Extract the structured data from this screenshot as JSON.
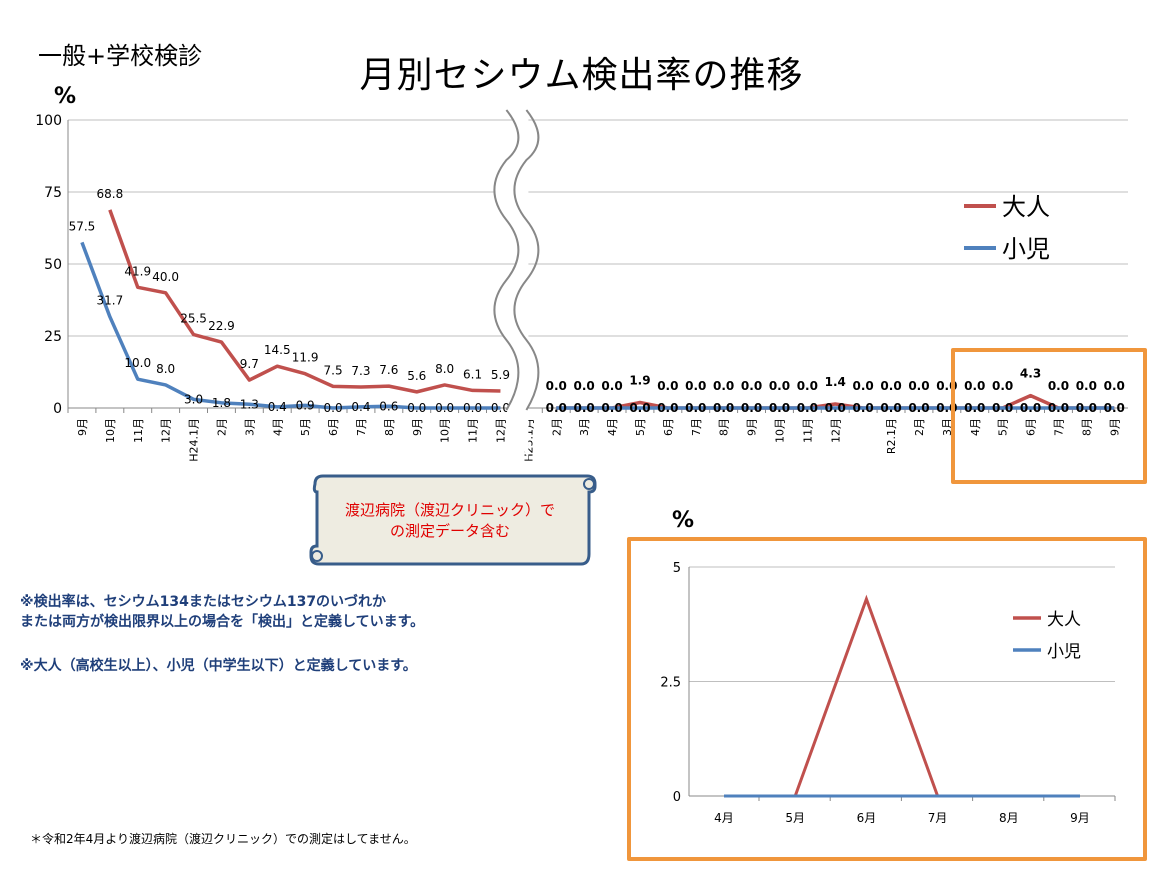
{
  "header": {
    "tag": "一般+学校検診",
    "title": "月別セシウム検出率の推移",
    "unit": "%"
  },
  "chart_data": [
    {
      "type": "line",
      "ylabel": "%",
      "ylim": [
        0,
        100
      ],
      "yticks": [
        0,
        25,
        50,
        75,
        100
      ],
      "axis_break": "between 12月 and H25.1月",
      "categories": [
        "9月",
        "10月",
        "11月",
        "12月",
        "H24.1月",
        "2月",
        "3月",
        "4月",
        "5月",
        "6月",
        "7月",
        "8月",
        "9月",
        "10月",
        "11月",
        "12月",
        "H25.1月",
        "2月",
        "3月",
        "4月",
        "5月",
        "6月",
        "7月",
        "8月",
        "9月",
        "10月",
        "11月",
        "12月",
        "",
        "R2.1月",
        "2月",
        "3月",
        "4月",
        "5月",
        "6月",
        "7月",
        "8月",
        "9月"
      ],
      "series": [
        {
          "name": "大人",
          "color": "#c0504d",
          "values": [
            null,
            68.8,
            41.9,
            40.0,
            25.5,
            22.9,
            9.7,
            14.5,
            11.9,
            7.5,
            7.3,
            7.6,
            5.6,
            8.0,
            6.1,
            5.9,
            null,
            0.0,
            0.0,
            0.0,
            1.9,
            0.0,
            0.0,
            0.0,
            0.0,
            0.0,
            0.0,
            1.4,
            0.0,
            0.0,
            0.0,
            0.0,
            0.0,
            0.0,
            4.3,
            0.0,
            0.0,
            0.0
          ]
        },
        {
          "name": "小児",
          "color": "#4f81bd",
          "values": [
            57.5,
            31.7,
            10.0,
            8.0,
            3.0,
            1.8,
            1.3,
            0.4,
            0.9,
            0.0,
            0.4,
            0.6,
            0.0,
            0.0,
            0.0,
            0.0,
            null,
            0.0,
            0.0,
            0.0,
            0.0,
            0.0,
            0.0,
            0.0,
            0.0,
            0.0,
            0.0,
            0.0,
            0.0,
            0.0,
            0.0,
            0.0,
            0.0,
            0.0,
            0.0,
            0.0,
            0.0,
            0.0
          ]
        }
      ],
      "legend": "right",
      "grid": true
    },
    {
      "type": "line",
      "ylabel": "%",
      "ylim": [
        0,
        5
      ],
      "yticks": [
        0,
        2.5,
        5
      ],
      "categories": [
        "4月",
        "5月",
        "6月",
        "7月",
        "8月",
        "9月"
      ],
      "series": [
        {
          "name": "大人",
          "color": "#c0504d",
          "values": [
            0,
            0,
            4.3,
            0,
            0,
            0
          ]
        },
        {
          "name": "小児",
          "color": "#4f81bd",
          "values": [
            0,
            0,
            0,
            0,
            0,
            0
          ]
        }
      ],
      "legend": "top-right",
      "grid": true
    }
  ],
  "callout": {
    "text_line1": "渡辺病院（渡辺クリニック）で",
    "text_line2": "の測定データ含む",
    "color": "#e00000"
  },
  "notes": {
    "line1": "※検出率は、セシウム134またはセシウム137のいづれか",
    "line2": "または両方が検出限界以上の場合を「検出」と定義しています。",
    "line3": "※大人（高校生以上）、小児（中学生以下）と定義しています。",
    "footnote": "＊令和2年4月より渡辺病院（渡辺クリニック）での測定はしてません。"
  },
  "colors": {
    "highlight": "#f0963c",
    "note": "#1f3f7a"
  }
}
